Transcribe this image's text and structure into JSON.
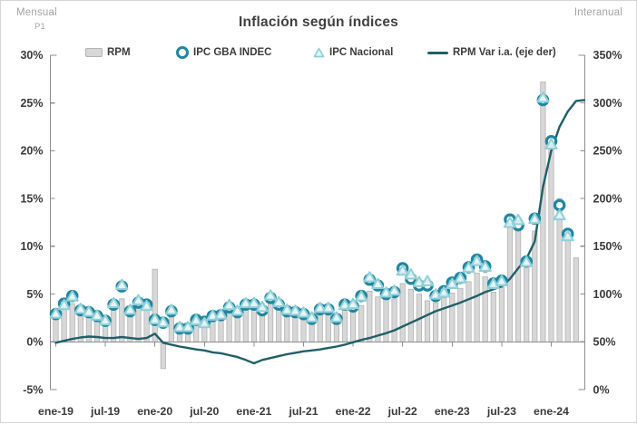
{
  "header": {
    "title": "Inflación según índices",
    "left_axis_unit": "Mensual",
    "left_sub_note": "P1",
    "right_axis_unit": "Interanual"
  },
  "colors": {
    "bar_fill": "#d7d7d7",
    "bar_border": "#b3b3b3",
    "circle_marker": "#1f86a1",
    "triangle_stroke": "#8fcfd8",
    "triangle_fill": "#e4f4f6",
    "line": "#1f5f68",
    "axis": "#8c8c8c",
    "tick_text": "#3a3a3a",
    "muted_text": "#a3a3a3"
  },
  "chart_data": {
    "type": "bar",
    "title": "Inflación según índices",
    "grid": false,
    "legend_position": "top",
    "left_axis": {
      "unit": "Mensual",
      "min": -5,
      "max": 30,
      "ticks": [
        "30%",
        "25%",
        "20%",
        "15%",
        "10%",
        "5%",
        "0%",
        "-5%"
      ]
    },
    "right_axis": {
      "unit": "Interanual",
      "min": 0,
      "max": 350,
      "ticks": [
        "350%",
        "300%",
        "250%",
        "200%",
        "150%",
        "100%",
        "50%",
        "0%"
      ]
    },
    "x_tick_labels": [
      "ene-19",
      "jul-19",
      "ene-20",
      "jul-20",
      "ene-21",
      "jul-21",
      "ene-22",
      "jul-22",
      "ene-23",
      "jul-23",
      "ene-24"
    ],
    "months": [
      "ene-19",
      "feb-19",
      "mar-19",
      "abr-19",
      "may-19",
      "jun-19",
      "jul-19",
      "ago-19",
      "sep-19",
      "oct-19",
      "nov-19",
      "dic-19",
      "ene-20",
      "feb-20",
      "mar-20",
      "abr-20",
      "may-20",
      "jun-20",
      "jul-20",
      "ago-20",
      "sep-20",
      "oct-20",
      "nov-20",
      "dic-20",
      "ene-21",
      "feb-21",
      "mar-21",
      "abr-21",
      "may-21",
      "jun-21",
      "jul-21",
      "ago-21",
      "sep-21",
      "oct-21",
      "nov-21",
      "dic-21",
      "ene-22",
      "feb-22",
      "mar-22",
      "abr-22",
      "may-22",
      "jun-22",
      "jul-22",
      "ago-22",
      "sep-22",
      "oct-22",
      "nov-22",
      "dic-22",
      "ene-23",
      "feb-23",
      "mar-23",
      "abr-23",
      "may-23",
      "jun-23",
      "jul-23",
      "ago-23",
      "sep-23",
      "oct-23",
      "nov-23",
      "dic-23",
      "ene-24",
      "feb-24",
      "mar-24",
      "abr-24"
    ],
    "series": [
      {
        "name": "RPM",
        "type": "bar",
        "axis": "left",
        "color": "#d7d7d7",
        "border": "#b3b3b3",
        "values": [
          2.6,
          3.4,
          4.0,
          3.4,
          3.0,
          2.7,
          2.3,
          3.3,
          4.5,
          3.4,
          4.0,
          4.2,
          7.6,
          -2.8,
          2.8,
          1.5,
          1.6,
          2.1,
          1.9,
          2.4,
          2.7,
          3.0,
          2.9,
          3.7,
          3.7,
          3.2,
          4.6,
          3.9,
          3.4,
          2.9,
          2.9,
          2.5,
          3.3,
          3.3,
          2.6,
          3.6,
          3.4,
          3.8,
          5.3,
          4.7,
          4.6,
          4.5,
          6.1,
          5.5,
          5.0,
          4.3,
          4.1,
          4.6,
          5.1,
          5.6,
          6.3,
          7.2,
          6.8,
          5.2,
          5.7,
          12.0,
          12.3,
          8.6,
          11.6,
          27.2,
          20.5,
          15.0,
          11.5,
          8.8
        ]
      },
      {
        "name": "IPC GBA INDEC",
        "type": "scatter-circle",
        "axis": "left",
        "color": "#1f86a1",
        "values": [
          2.9,
          4.0,
          4.8,
          3.3,
          3.1,
          2.7,
          2.2,
          3.9,
          5.8,
          3.2,
          4.1,
          3.9,
          2.3,
          2.0,
          3.2,
          1.4,
          1.4,
          2.3,
          2.1,
          2.7,
          2.8,
          3.6,
          3.1,
          3.9,
          3.9,
          3.3,
          4.6,
          3.9,
          3.2,
          3.1,
          2.9,
          2.4,
          3.4,
          3.4,
          2.4,
          3.9,
          3.7,
          4.8,
          6.5,
          5.9,
          5.0,
          5.2,
          7.7,
          6.6,
          5.9,
          5.9,
          4.8,
          5.3,
          6.2,
          6.7,
          7.8,
          8.6,
          7.9,
          6.1,
          6.4,
          12.8,
          12.2,
          8.4,
          12.9,
          25.3,
          21.0,
          14.3,
          11.3,
          null
        ]
      },
      {
        "name": "IPC Nacional",
        "type": "scatter-triangle",
        "axis": "left",
        "color": "#8fcfd8",
        "fill": "#e4f4f6",
        "values": [
          2.9,
          3.8,
          4.7,
          3.4,
          3.1,
          2.7,
          2.2,
          4.0,
          5.9,
          3.3,
          4.3,
          3.7,
          2.3,
          2.0,
          3.3,
          1.5,
          1.5,
          2.2,
          1.9,
          2.7,
          2.8,
          3.8,
          3.2,
          4.0,
          4.0,
          3.6,
          4.8,
          4.1,
          3.3,
          3.2,
          3.0,
          2.5,
          3.5,
          3.5,
          2.5,
          3.8,
          3.9,
          4.7,
          6.7,
          6.0,
          5.1,
          5.3,
          7.4,
          7.0,
          6.2,
          6.3,
          4.9,
          5.1,
          6.0,
          6.6,
          7.7,
          8.4,
          7.8,
          6.0,
          6.3,
          12.4,
          12.7,
          8.3,
          12.8,
          25.5,
          20.6,
          13.2,
          11.0,
          null
        ]
      },
      {
        "name": "RPM Var i.a. (eje der)",
        "type": "line",
        "axis": "right",
        "color": "#1f5f68",
        "end_value": 303,
        "values": [
          49,
          51,
          53,
          54.5,
          55.5,
          55,
          54,
          54,
          55,
          54,
          53,
          54,
          58.5,
          49,
          47,
          45,
          43.5,
          42,
          41,
          39,
          38,
          36,
          34,
          31,
          27.5,
          31,
          33,
          35,
          37,
          38.5,
          40,
          41,
          42,
          43.5,
          45,
          47,
          49.5,
          52,
          54,
          56.5,
          59,
          62,
          66,
          70,
          74,
          78,
          82,
          85,
          88,
          91,
          94.5,
          98,
          102,
          105,
          108,
          116,
          127,
          137,
          155,
          212,
          250,
          275,
          291,
          302
        ]
      }
    ]
  }
}
